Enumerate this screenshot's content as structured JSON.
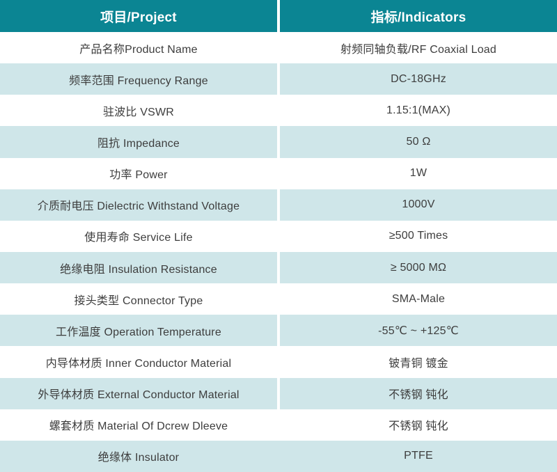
{
  "table": {
    "accent_color": "#0b8593",
    "alt_row_color": "#cfe6e9",
    "text_color": "#3d3d3d",
    "header_text_color": "#ffffff",
    "header": {
      "project_label": "项目/Project",
      "indicators_label": "指标/Indicators"
    },
    "rows": [
      {
        "project": "产品名称Product Name",
        "indicator": "射频同轴负载/RF Coaxial Load"
      },
      {
        "project": "频率范围 Frequency Range",
        "indicator": "DC-18GHz"
      },
      {
        "project": "驻波比 VSWR",
        "indicator": "1.15:1(MAX)"
      },
      {
        "project": "阻抗 Impedance",
        "indicator": "50 Ω"
      },
      {
        "project": "功率 Power",
        "indicator": "1W"
      },
      {
        "project": "介质耐电压 Dielectric Withstand Voltage",
        "indicator": "1000V"
      },
      {
        "project": "使用寿命 Service Life",
        "indicator": "≥500 Times"
      },
      {
        "project": "绝缘电阻 Insulation Resistance",
        "indicator": "≥ 5000 MΩ"
      },
      {
        "project": "接头类型 Connector Type",
        "indicator": "SMA-Male"
      },
      {
        "project": "工作温度 Operation Temperature",
        "indicator": "-55℃ ~ +125℃"
      },
      {
        "project": "内导体材质 Inner Conductor Material",
        "indicator": "铍青铜 镀金"
      },
      {
        "project": "外导体材质 External Conductor Material",
        "indicator": "不锈钢 钝化"
      },
      {
        "project": "螺套材质 Material Of Dcrew Dleeve",
        "indicator": "不锈钢 钝化"
      },
      {
        "project": "绝缘体 Insulator",
        "indicator": "PTFE"
      }
    ]
  }
}
